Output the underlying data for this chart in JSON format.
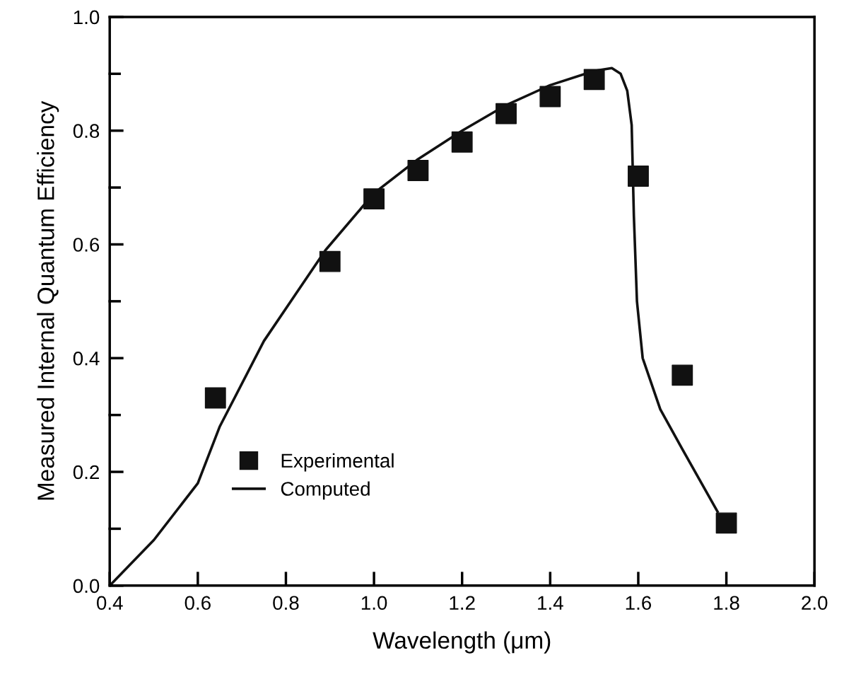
{
  "chart_data": {
    "type": "scatter",
    "xlabel": "Wavelength (μm)",
    "ylabel": "Measured Internal Quantum Efficiency",
    "xlim": [
      0.4,
      2.0
    ],
    "ylim": [
      0.0,
      1.0
    ],
    "xticks": [
      {
        "value": 0.4,
        "label": "0.4"
      },
      {
        "value": 0.6,
        "label": "0.6"
      },
      {
        "value": 0.8,
        "label": "0.8"
      },
      {
        "value": 1.0,
        "label": "1.0"
      },
      {
        "value": 1.2,
        "label": "1.2"
      },
      {
        "value": 1.4,
        "label": "1.4"
      },
      {
        "value": 1.6,
        "label": "1.6"
      },
      {
        "value": 1.8,
        "label": "1.8"
      },
      {
        "value": 2.0,
        "label": "2.0"
      }
    ],
    "yticks": [
      {
        "value": 0.0,
        "label": "0.0"
      },
      {
        "value": 0.1,
        "label": null
      },
      {
        "value": 0.2,
        "label": "0.2"
      },
      {
        "value": 0.3,
        "label": null
      },
      {
        "value": 0.4,
        "label": "0.4"
      },
      {
        "value": 0.5,
        "label": null
      },
      {
        "value": 0.6,
        "label": "0.6"
      },
      {
        "value": 0.7,
        "label": null
      },
      {
        "value": 0.8,
        "label": "0.8"
      },
      {
        "value": 0.9,
        "label": null
      },
      {
        "value": 1.0,
        "label": "1.0"
      }
    ],
    "grid": false,
    "legend": "lower left",
    "series": [
      {
        "name": "Experimental",
        "marker": "square",
        "color": "#111111",
        "x": [
          0.64,
          0.9,
          1.0,
          1.1,
          1.2,
          1.3,
          1.4,
          1.5,
          1.6,
          1.7,
          1.8
        ],
        "values": [
          0.33,
          0.57,
          0.68,
          0.73,
          0.78,
          0.83,
          0.86,
          0.89,
          0.72,
          0.37,
          0.11
        ]
      },
      {
        "name": "Computed",
        "type": "line",
        "line_style": "solid",
        "marker": "none",
        "color": "#111111",
        "x": [
          0.4,
          0.5,
          0.6,
          0.65,
          0.75,
          0.82,
          0.89,
          1.0,
          1.1,
          1.2,
          1.3,
          1.4,
          1.5,
          1.54,
          1.56,
          1.575,
          1.585,
          1.59,
          1.597,
          1.61,
          1.65,
          1.7,
          1.78
        ],
        "values": [
          0.0,
          0.08,
          0.18,
          0.28,
          0.43,
          0.51,
          0.59,
          0.69,
          0.75,
          0.8,
          0.845,
          0.88,
          0.905,
          0.91,
          0.9,
          0.87,
          0.81,
          0.65,
          0.5,
          0.4,
          0.31,
          0.24,
          0.13
        ]
      }
    ]
  }
}
